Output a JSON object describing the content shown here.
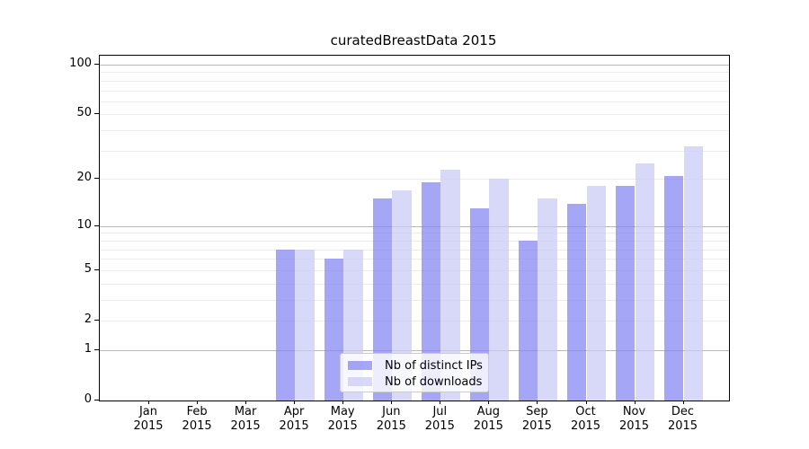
{
  "title": "curatedBreastData 2015",
  "chart_data": {
    "type": "bar",
    "title": "curatedBreastData 2015",
    "categories": [
      "Jan",
      "Feb",
      "Mar",
      "Apr",
      "May",
      "Jun",
      "Jul",
      "Aug",
      "Sep",
      "Oct",
      "Nov",
      "Dec"
    ],
    "x_year": "2015",
    "series": [
      {
        "name": "Nb of distinct IPs",
        "color": "#8383f4",
        "values": [
          0,
          0,
          0,
          7,
          6,
          15,
          19,
          13,
          8,
          14,
          18,
          21
        ]
      },
      {
        "name": "Nb of downloads",
        "color": "#c9c9f5",
        "values": [
          0,
          0,
          0,
          7,
          7,
          17,
          23,
          20,
          15,
          18,
          25,
          32
        ]
      }
    ],
    "ylabel": "",
    "xlabel": "",
    "yscale": "log1p",
    "ylim": [
      0,
      113
    ],
    "yticks": [
      0,
      1,
      2,
      5,
      10,
      20,
      50,
      100
    ],
    "gridlines_minor": [
      2,
      3,
      4,
      5,
      6,
      7,
      8,
      9,
      20,
      30,
      40,
      50,
      60,
      70,
      80,
      90
    ],
    "gridlines_major": [
      1,
      10,
      100
    ],
    "grid": "on",
    "legend_position": "lower center"
  }
}
